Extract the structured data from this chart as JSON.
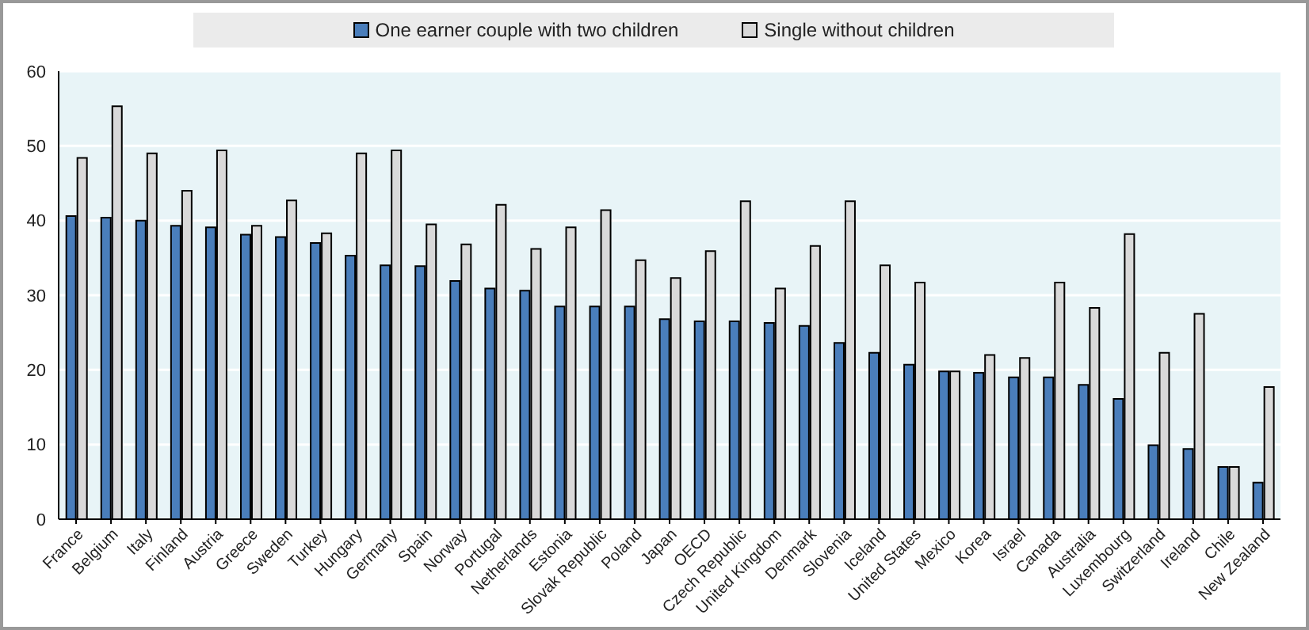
{
  "chart_data": {
    "type": "bar",
    "categories": [
      "France",
      "Belgium",
      "Italy",
      "Finland",
      "Austria",
      "Greece",
      "Sweden",
      "Turkey",
      "Hungary",
      "Germany",
      "Spain",
      "Norway",
      "Portugal",
      "Netherlands",
      "Estonia",
      "Slovak Republic",
      "Poland",
      "Japan",
      "OECD",
      "Czech Republic",
      "United Kingdom",
      "Denmark",
      "Slovenia",
      "Iceland",
      "United States",
      "Mexico",
      "Korea",
      "Israel",
      "Canada",
      "Australia",
      "Luxembourg",
      "Switzerland",
      "Ireland",
      "Chile",
      "New Zealand"
    ],
    "series": [
      {
        "name": "One earner couple with two children",
        "color": "#4a7ebb",
        "values": [
          40.6,
          40.4,
          40,
          39.3,
          39.1,
          38.1,
          37.8,
          37,
          35.3,
          34,
          33.9,
          31.9,
          30.9,
          30.6,
          28.5,
          28.5,
          28.5,
          26.8,
          26.5,
          26.5,
          26.3,
          25.9,
          23.6,
          22.3,
          20.7,
          19.8,
          19.6,
          19,
          19,
          18,
          16.1,
          9.9,
          9.4,
          7,
          4.9
        ]
      },
      {
        "name": "Single without children",
        "color": "#d9d9d9",
        "values": [
          48.4,
          55.3,
          49,
          44,
          49.4,
          39.3,
          42.7,
          38.3,
          49,
          49.4,
          39.5,
          36.8,
          42.1,
          36.2,
          39.1,
          41.4,
          34.7,
          32.3,
          35.9,
          42.6,
          30.9,
          36.6,
          42.6,
          34,
          31.7,
          19.8,
          22,
          21.6,
          31.7,
          28.3,
          38.2,
          22.3,
          27.5,
          7,
          17.7
        ]
      }
    ],
    "ylim": [
      0,
      60
    ],
    "yticks": [
      0,
      10,
      20,
      30,
      40,
      50,
      60
    ],
    "grid": "y",
    "legend": "top"
  }
}
